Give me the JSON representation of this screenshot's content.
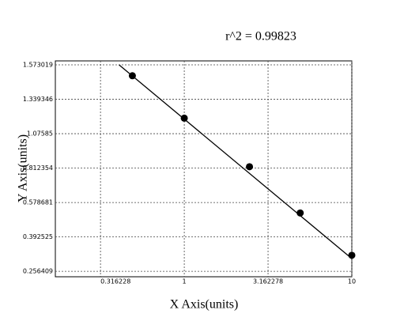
{
  "chart_data": {
    "type": "scatter",
    "title": "r^2 = 0.99823",
    "xlabel": "X Axis(units)",
    "ylabel": "Y Axis(units)",
    "xscale": "log",
    "xlim": [
      0.17,
      10
    ],
    "xticks": [
      0.316228,
      1,
      3.162278,
      10
    ],
    "ylim": [
      0.235,
      1.6
    ],
    "yticks": [
      0.256409,
      0.392525,
      0.578681,
      0.812354,
      1.07585,
      1.339346,
      1.573019
    ],
    "grid": true,
    "series": [
      {
        "color": "#000000",
        "x": [
          0.49,
          1,
          2.45,
          4.92,
          10
        ],
        "values": [
          1.499,
          1.195,
          0.823,
          0.522,
          0.32
        ]
      }
    ],
    "fit": {
      "color": "#000000",
      "x": [
        0.408,
        10
      ],
      "values": [
        1.573,
        0.307
      ]
    }
  }
}
